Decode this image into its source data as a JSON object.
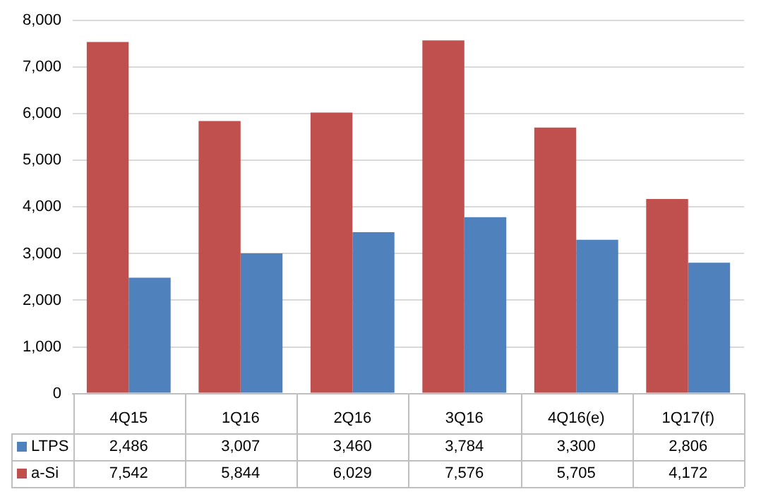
{
  "chart_data": {
    "type": "bar",
    "categories": [
      "4Q15",
      "1Q16",
      "2Q16",
      "3Q16",
      "4Q16(e)",
      "1Q17(f)"
    ],
    "series": [
      {
        "name": "LTPS",
        "color": "#4f81bd",
        "values": [
          2486,
          3007,
          3460,
          3784,
          3300,
          2806
        ],
        "value_labels": [
          "2,486",
          "3,007",
          "3,460",
          "3,784",
          "3,300",
          "2,806"
        ]
      },
      {
        "name": "a-Si",
        "color": "#c0504d",
        "values": [
          7542,
          5844,
          6029,
          7576,
          5705,
          4172
        ],
        "value_labels": [
          "7,542",
          "5,844",
          "6,029",
          "7,576",
          "5,705",
          "4,172"
        ]
      }
    ],
    "ylim": [
      0,
      8000
    ],
    "yticks": [
      0,
      {
        "value": 1000,
        "label": "1,000"
      },
      {
        "value": 2000,
        "label": "2,000"
      },
      {
        "value": 3000,
        "label": "3,000"
      },
      {
        "value": 4000,
        "label": "4,000"
      },
      {
        "value": 5000,
        "label": "5,000"
      },
      {
        "value": 6000,
        "label": "6,000"
      },
      {
        "value": 7000,
        "label": "7,000"
      },
      {
        "value": 8000,
        "label": "8,000"
      }
    ],
    "grid": "y",
    "legend": "bottom"
  }
}
